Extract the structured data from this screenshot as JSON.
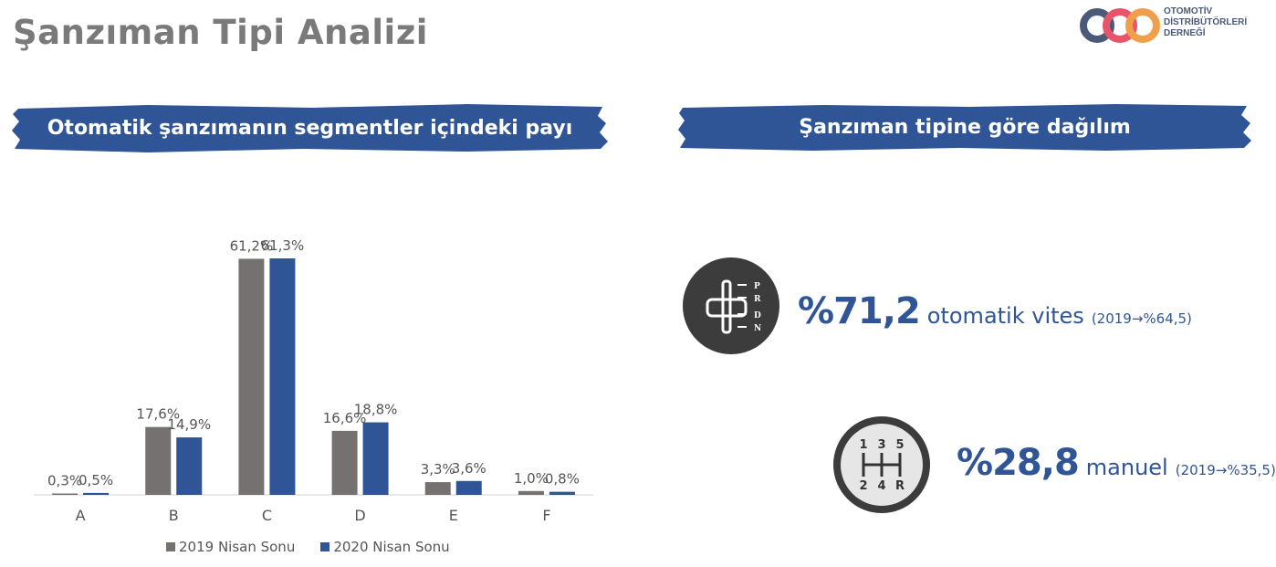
{
  "page": {
    "title": "Şanzıman Tipi Analizi",
    "logo": {
      "text_lines": [
        "OTOMOTİV",
        "DİSTRİBÜTÖRLERİ",
        "DERNEĞİ"
      ],
      "colors": [
        "#4a5a78",
        "#e8546a",
        "#f0a04b"
      ]
    }
  },
  "banners": {
    "left": "Otomatik şanzımanın segmentler içindeki payı",
    "right": "Şanzıman tipine göre dağılım",
    "color": "#2f5597"
  },
  "chart_data": {
    "type": "bar",
    "categories": [
      "A",
      "B",
      "C",
      "D",
      "E",
      "F"
    ],
    "series": [
      {
        "name": "2019 Nisan Sonu",
        "values": [
          0.3,
          17.6,
          61.2,
          16.6,
          3.3,
          1.0
        ],
        "labels": [
          "0,3%",
          "17,6%",
          "61,2%",
          "16,6%",
          "3,3%",
          "1,0%"
        ],
        "color": "#767171"
      },
      {
        "name": "2020 Nisan Sonu",
        "values": [
          0.5,
          14.9,
          61.3,
          18.8,
          3.6,
          0.8
        ],
        "labels": [
          "0,5%",
          "14,9%",
          "61,3%",
          "18,8%",
          "3,6%",
          "0,8%"
        ],
        "color": "#2f5597"
      }
    ],
    "ylim": [
      0,
      61.3
    ],
    "grid": false,
    "legend": "bottom"
  },
  "stats": [
    {
      "icon": "automatic-gear-icon",
      "big": "%71,2",
      "word": "otomatik vites",
      "note": "(2019→%64,5)",
      "gear_letters": [
        "P",
        "R",
        "D",
        "N"
      ]
    },
    {
      "icon": "manual-gear-icon",
      "big": "%28,8",
      "word": "manuel",
      "note": "(2019→%35,5)",
      "gear_numbers_top": [
        "1",
        "3",
        "5"
      ],
      "gear_numbers_bottom": [
        "2",
        "4",
        "R"
      ]
    }
  ]
}
